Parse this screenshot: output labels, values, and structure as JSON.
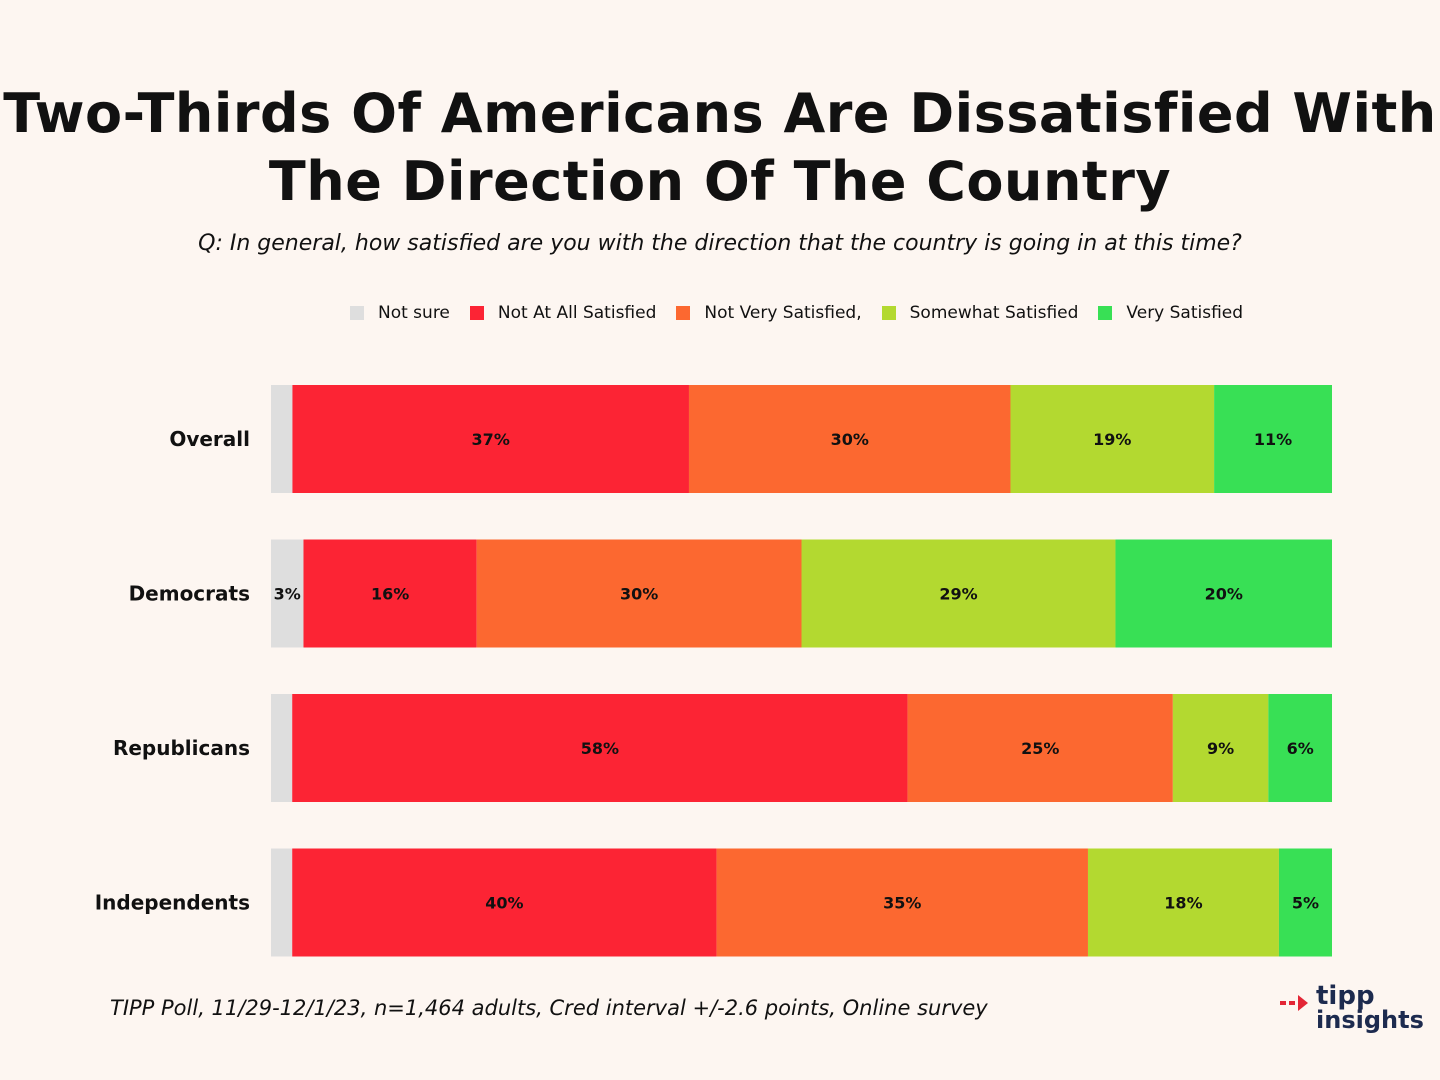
{
  "title_line1": "Two-Thirds Of Americans Are Dissatisfied With",
  "title_line2": "The Direction Of The Country",
  "subtitle": "Q: In general, how satisfied are you with the direction that the country is going in at this time?",
  "footer": "TIPP Poll, 11/29-12/1/23, n=1,464 adults, Cred interval +/-2.6 points, Online survey",
  "logo": {
    "line1": "tipp",
    "line2": "insights"
  },
  "colors": {
    "not_sure": "#dedede",
    "not_at_all": "#fc2434",
    "not_very": "#fc6830",
    "somewhat": "#b3d930",
    "very": "#38e055"
  },
  "chart_data": {
    "type": "bar",
    "orientation": "horizontal",
    "stacked": true,
    "normalized": true,
    "legend_position": "top",
    "categories": [
      "Overall",
      "Democrats",
      "Republicans",
      "Independents"
    ],
    "series": [
      {
        "name": "Not sure",
        "color_key": "not_sure",
        "values": [
          2,
          3,
          2,
          2
        ],
        "labels": [
          "",
          "3%",
          "",
          ""
        ]
      },
      {
        "name": "Not At All Satisfied",
        "color_key": "not_at_all",
        "values": [
          37,
          16,
          58,
          40
        ],
        "labels": [
          "37%",
          "16%",
          "58%",
          "40%"
        ]
      },
      {
        "name": "Not Very Satisfied,",
        "color_key": "not_very",
        "values": [
          30,
          30,
          25,
          35
        ],
        "labels": [
          "30%",
          "30%",
          "25%",
          "35%"
        ]
      },
      {
        "name": "Somewhat Satisfied",
        "color_key": "somewhat",
        "values": [
          19,
          29,
          9,
          18
        ],
        "labels": [
          "19%",
          "29%",
          "9%",
          "18%"
        ]
      },
      {
        "name": "Very Satisfied",
        "color_key": "very",
        "values": [
          11,
          20,
          6,
          5
        ],
        "labels": [
          "11%",
          "20%",
          "6%",
          "5%"
        ]
      }
    ]
  }
}
